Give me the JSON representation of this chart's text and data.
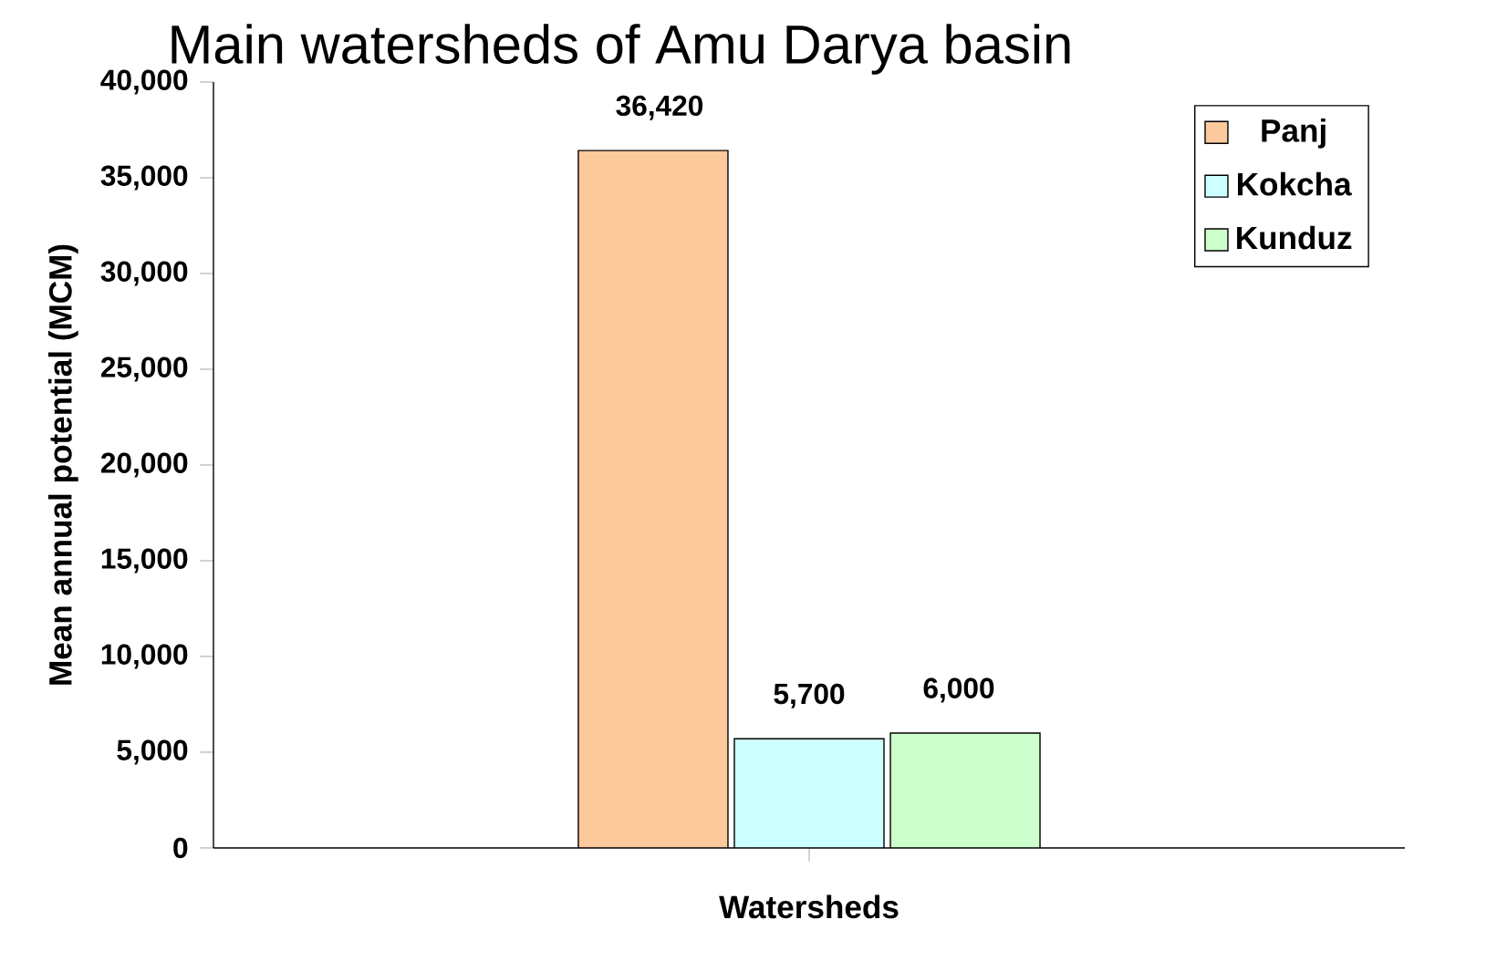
{
  "chart_data": {
    "type": "bar",
    "title": "Main watersheds of Amu Darya basin",
    "xlabel": "Watersheds",
    "ylabel": "Mean annual potential (MCM)",
    "categories": [
      null
    ],
    "series": [
      {
        "name": "Panj",
        "color": "#fcc99c",
        "values": [
          36420
        ],
        "value_labels": [
          "36,420"
        ]
      },
      {
        "name": "Kokcha",
        "color": "#ccffff",
        "values": [
          5700
        ],
        "value_labels": [
          "5,700"
        ]
      },
      {
        "name": "Kunduz",
        "color": "#ccffcc",
        "values": [
          6000
        ],
        "value_labels": [
          "6,000"
        ]
      }
    ],
    "ylim": [
      0,
      40000
    ],
    "yticks": [
      0,
      {
        "value": 5000,
        "label": "5,000"
      },
      {
        "value": 10000,
        "label": "10,000"
      },
      {
        "value": 15000,
        "label": "15,000"
      },
      {
        "value": 20000,
        "label": "20,000"
      },
      {
        "value": 25000,
        "label": "25,000"
      },
      {
        "value": 30000,
        "label": "30,000"
      },
      {
        "value": 35000,
        "label": "35,000"
      },
      {
        "value": 40000,
        "label": "40,000"
      }
    ],
    "legend": "top right"
  }
}
